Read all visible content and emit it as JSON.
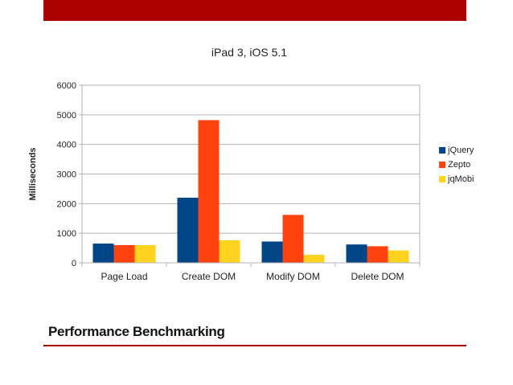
{
  "slide": {
    "title": "Performance Benchmarking",
    "accent_color": "#aa0000"
  },
  "chart_data": {
    "type": "bar",
    "title": "iPad 3, iOS 5.1",
    "xlabel": "",
    "ylabel": "Milliseconds",
    "ylim": [
      0,
      6000
    ],
    "yticks": [
      0,
      1000,
      2000,
      3000,
      4000,
      5000,
      6000
    ],
    "grid": true,
    "legend_position": "right",
    "categories": [
      "Page Load",
      "Create DOM",
      "Modify DOM",
      "Delete DOM"
    ],
    "series": [
      {
        "name": "jQuery",
        "color": "#004586",
        "values": [
          650,
          2200,
          720,
          620
        ]
      },
      {
        "name": "Zepto",
        "color": "#ff420e",
        "values": [
          600,
          4820,
          1620,
          560
        ]
      },
      {
        "name": "jqMobi",
        "color": "#ffd320",
        "values": [
          600,
          760,
          270,
          420
        ]
      }
    ]
  }
}
